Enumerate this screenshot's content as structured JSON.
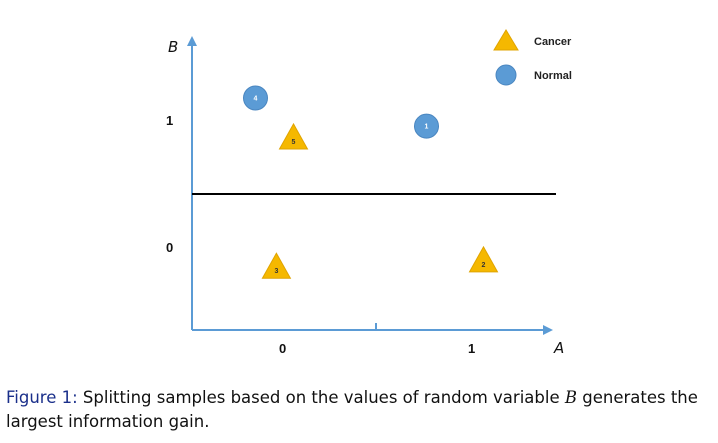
{
  "chart_data": {
    "type": "scatter",
    "xlabel": "A",
    "ylabel": "B",
    "x_ticks": [
      "0",
      "1"
    ],
    "y_ticks": [
      "0",
      "1"
    ],
    "legend": [
      {
        "name": "Cancer",
        "shape": "triangle",
        "color": "#f5b800"
      },
      {
        "name": "Normal",
        "shape": "circle",
        "color": "#5b9bd5"
      }
    ],
    "legend_position": "top-right",
    "split_line": {
      "axis": "B",
      "value": 0.5
    },
    "points": [
      {
        "id": "1",
        "class": "Normal",
        "x": 0.75,
        "y": 1.03
      },
      {
        "id": "2",
        "class": "Cancer",
        "x": 1.05,
        "y": -0.03
      },
      {
        "id": "3",
        "class": "Cancer",
        "x": -0.04,
        "y": -0.08
      },
      {
        "id": "4",
        "class": "Normal",
        "x": -0.15,
        "y": 1.25
      },
      {
        "id": "5",
        "class": "Cancer",
        "x": 0.05,
        "y": 0.93
      }
    ]
  },
  "caption": {
    "label": "Figure 1:",
    "text_before": " Splitting samples based on the values of random variable ",
    "var": "B",
    "text_after": " generates the largest information gain."
  }
}
